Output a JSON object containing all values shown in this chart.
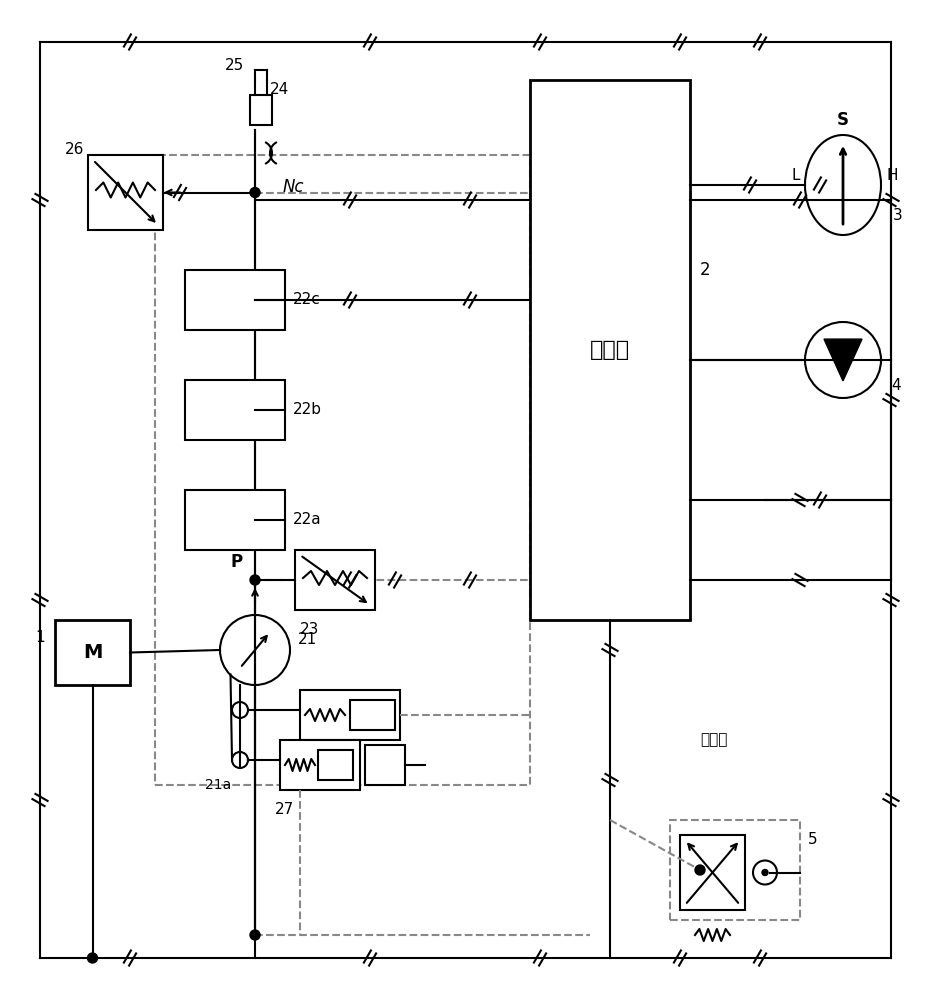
{
  "bg_color": "#ffffff",
  "line_color": "#000000",
  "dashed_color": "#555555",
  "fig_width": 9.31,
  "fig_height": 10.0,
  "labels": {
    "title": "",
    "Nc": "Nc",
    "P": "P",
    "S": "S",
    "L": "L",
    "H": "H",
    "M": "M",
    "controller": "控制器",
    "pump_current": "泵电流",
    "num_1": "1",
    "num_2": "2",
    "num_3": "3",
    "num_4": "4",
    "num_5": "5",
    "num_21": "21",
    "num_21a": "21a",
    "num_22a": "22a",
    "num_22b": "22b",
    "num_22c": "22c",
    "num_23": "23",
    "num_24": "24",
    "num_25": "25",
    "num_26": "26",
    "num_27": "27"
  }
}
